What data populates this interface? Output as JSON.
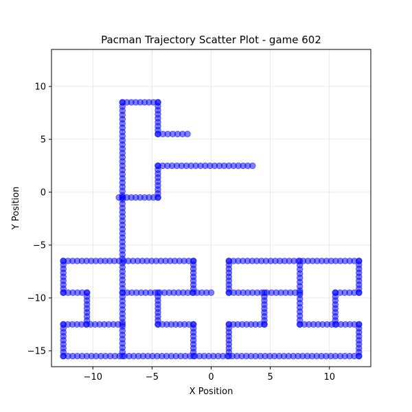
{
  "chart_data": {
    "type": "scatter",
    "title": "Pacman Trajectory Scatter Plot - game 602",
    "xlabel": "X Position",
    "ylabel": "Y Position",
    "xlim": [
      -13.5,
      13.5
    ],
    "ylim": [
      -16.5,
      13.5
    ],
    "xticks": [
      -10,
      -5,
      0,
      5,
      10
    ],
    "yticks": [
      -15,
      -10,
      -5,
      0,
      5,
      10
    ],
    "xtick_labels": [
      "−10",
      "−5",
      "0",
      "5",
      "10"
    ],
    "ytick_labels": [
      "−15",
      "−10",
      "−5",
      "0",
      "5",
      "10"
    ],
    "grid": true,
    "marker_color": "#0000ff",
    "marker_alpha": 0.5,
    "path_segments": [
      {
        "from": [
          -2,
          5.5
        ],
        "to": [
          -4.5,
          5.5
        ]
      },
      {
        "from": [
          -4.5,
          5.5
        ],
        "to": [
          -4.5,
          8.5
        ]
      },
      {
        "from": [
          -4.5,
          8.5
        ],
        "to": [
          -7.5,
          8.5
        ]
      },
      {
        "from": [
          -7.5,
          8.5
        ],
        "to": [
          -7.5,
          -15.5
        ]
      },
      {
        "from": [
          -7.5,
          -0.5
        ],
        "to": [
          -4.5,
          -0.5
        ]
      },
      {
        "from": [
          -4.5,
          -0.5
        ],
        "to": [
          -4.5,
          2.5
        ]
      },
      {
        "from": [
          -4.5,
          2.5
        ],
        "to": [
          3.5,
          2.5
        ]
      },
      {
        "from": [
          -7.8,
          -0.5
        ],
        "to": [
          -7.5,
          -0.5
        ]
      },
      {
        "from": [
          -12.5,
          -6.5
        ],
        "to": [
          -1.5,
          -6.5
        ]
      },
      {
        "from": [
          -12.5,
          -6.5
        ],
        "to": [
          -12.5,
          -9.5
        ]
      },
      {
        "from": [
          -12.5,
          -9.5
        ],
        "to": [
          -10.5,
          -9.5
        ]
      },
      {
        "from": [
          -10.5,
          -9.5
        ],
        "to": [
          -10.5,
          -12.5
        ]
      },
      {
        "from": [
          -12.5,
          -12.5
        ],
        "to": [
          -7.5,
          -12.5
        ]
      },
      {
        "from": [
          -12.5,
          -12.5
        ],
        "to": [
          -12.5,
          -15.5
        ]
      },
      {
        "from": [
          -12.5,
          -15.5
        ],
        "to": [
          12.5,
          -15.5
        ]
      },
      {
        "from": [
          -7.5,
          -9.5
        ],
        "to": [
          0,
          -9.5
        ]
      },
      {
        "from": [
          -1.5,
          -6.5
        ],
        "to": [
          -1.5,
          -9.5
        ]
      },
      {
        "from": [
          -4.5,
          -9.5
        ],
        "to": [
          -4.5,
          -12.5
        ]
      },
      {
        "from": [
          -4.5,
          -12.5
        ],
        "to": [
          -1.5,
          -12.5
        ]
      },
      {
        "from": [
          -1.5,
          -12.5
        ],
        "to": [
          -1.5,
          -15.5
        ]
      },
      {
        "from": [
          1.5,
          -6.5
        ],
        "to": [
          12.5,
          -6.5
        ]
      },
      {
        "from": [
          1.5,
          -6.5
        ],
        "to": [
          1.5,
          -9.5
        ]
      },
      {
        "from": [
          1.5,
          -9.5
        ],
        "to": [
          7.5,
          -9.5
        ]
      },
      {
        "from": [
          4.5,
          -9.5
        ],
        "to": [
          4.5,
          -12.5
        ]
      },
      {
        "from": [
          1.5,
          -12.5
        ],
        "to": [
          4.5,
          -12.5
        ]
      },
      {
        "from": [
          1.5,
          -12.5
        ],
        "to": [
          1.5,
          -15.5
        ]
      },
      {
        "from": [
          7.5,
          -6.5
        ],
        "to": [
          7.5,
          -12.5
        ]
      },
      {
        "from": [
          7.5,
          -12.5
        ],
        "to": [
          12.5,
          -12.5
        ]
      },
      {
        "from": [
          10.5,
          -9.5
        ],
        "to": [
          10.5,
          -12.5
        ]
      },
      {
        "from": [
          10.5,
          -9.5
        ],
        "to": [
          12.5,
          -9.5
        ]
      },
      {
        "from": [
          12.5,
          -6.5
        ],
        "to": [
          12.5,
          -9.5
        ]
      },
      {
        "from": [
          12.5,
          -12.5
        ],
        "to": [
          12.5,
          -15.5
        ]
      }
    ],
    "point_spacing": 0.4
  }
}
